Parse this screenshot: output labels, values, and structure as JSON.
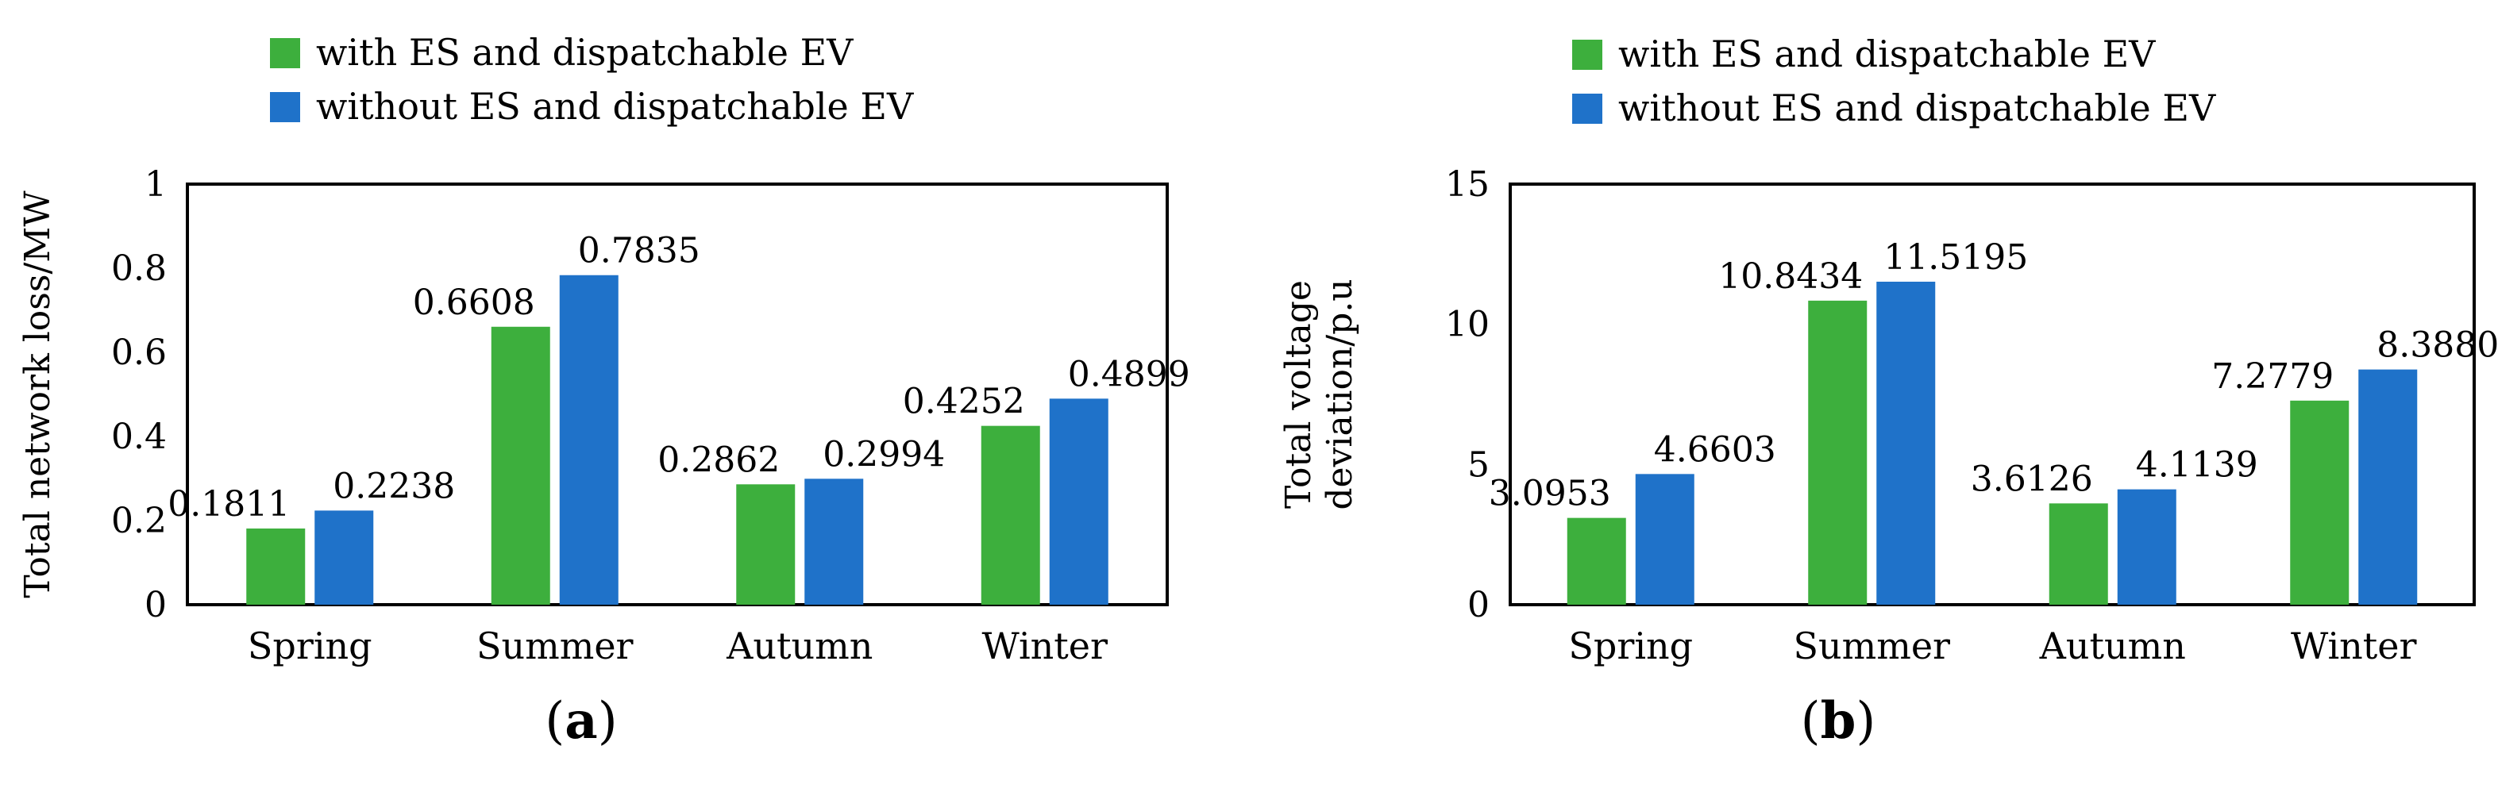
{
  "legend": {
    "with": "with ES and dispatchable EV",
    "without": "without ES and dispatchable EV"
  },
  "colors": {
    "with": "#3daf3d",
    "without": "#1f72c9"
  },
  "chart_data": [
    {
      "type": "bar",
      "panel": "(a)",
      "panel_letter": "a",
      "categories": [
        "Spring",
        "Summer",
        "Autumn",
        "Winter"
      ],
      "series": [
        {
          "name": "with ES and dispatchable EV",
          "values": [
            0.1811,
            0.6608,
            0.2862,
            0.4252
          ],
          "labels": [
            "0.1811",
            "0.6608",
            "0.2862",
            "0.4252"
          ]
        },
        {
          "name": "without ES and dispatchable EV",
          "values": [
            0.2238,
            0.7835,
            0.2994,
            0.4899
          ],
          "labels": [
            "0.2238",
            "0.7835",
            "0.2994",
            "0.4899"
          ]
        }
      ],
      "ylabel": [
        "Total network  loss/MW"
      ],
      "ylim": [
        0,
        1
      ],
      "yticks": [
        0,
        0.2,
        0.4,
        0.6,
        0.8,
        1
      ],
      "ytick_labels": [
        "0",
        "0.2",
        "0.4",
        "0.6",
        "0.8",
        "1"
      ],
      "grid": false,
      "legend_position": "top"
    },
    {
      "type": "bar",
      "panel": "(b)",
      "panel_letter": "b",
      "categories": [
        "Spring",
        "Summer",
        "Autumn",
        "Winter"
      ],
      "series": [
        {
          "name": "with ES and dispatchable EV",
          "values": [
            3.0953,
            10.8434,
            3.6126,
            7.2779
          ],
          "labels": [
            "3.0953",
            "10.8434",
            "3.6126",
            "7.2779"
          ]
        },
        {
          "name": "without ES and dispatchable EV",
          "values": [
            4.6603,
            11.5195,
            4.1139,
            8.388
          ],
          "labels": [
            "4.6603",
            "11.5195",
            "4.1139",
            "8.3880"
          ]
        }
      ],
      "ylabel": [
        "Total  voltage",
        "deviation/p.u"
      ],
      "ylim": [
        0,
        15
      ],
      "yticks": [
        0,
        5,
        10,
        15
      ],
      "ytick_labels": [
        "0",
        "5",
        "10",
        "15"
      ],
      "grid": false,
      "legend_position": "top"
    }
  ]
}
